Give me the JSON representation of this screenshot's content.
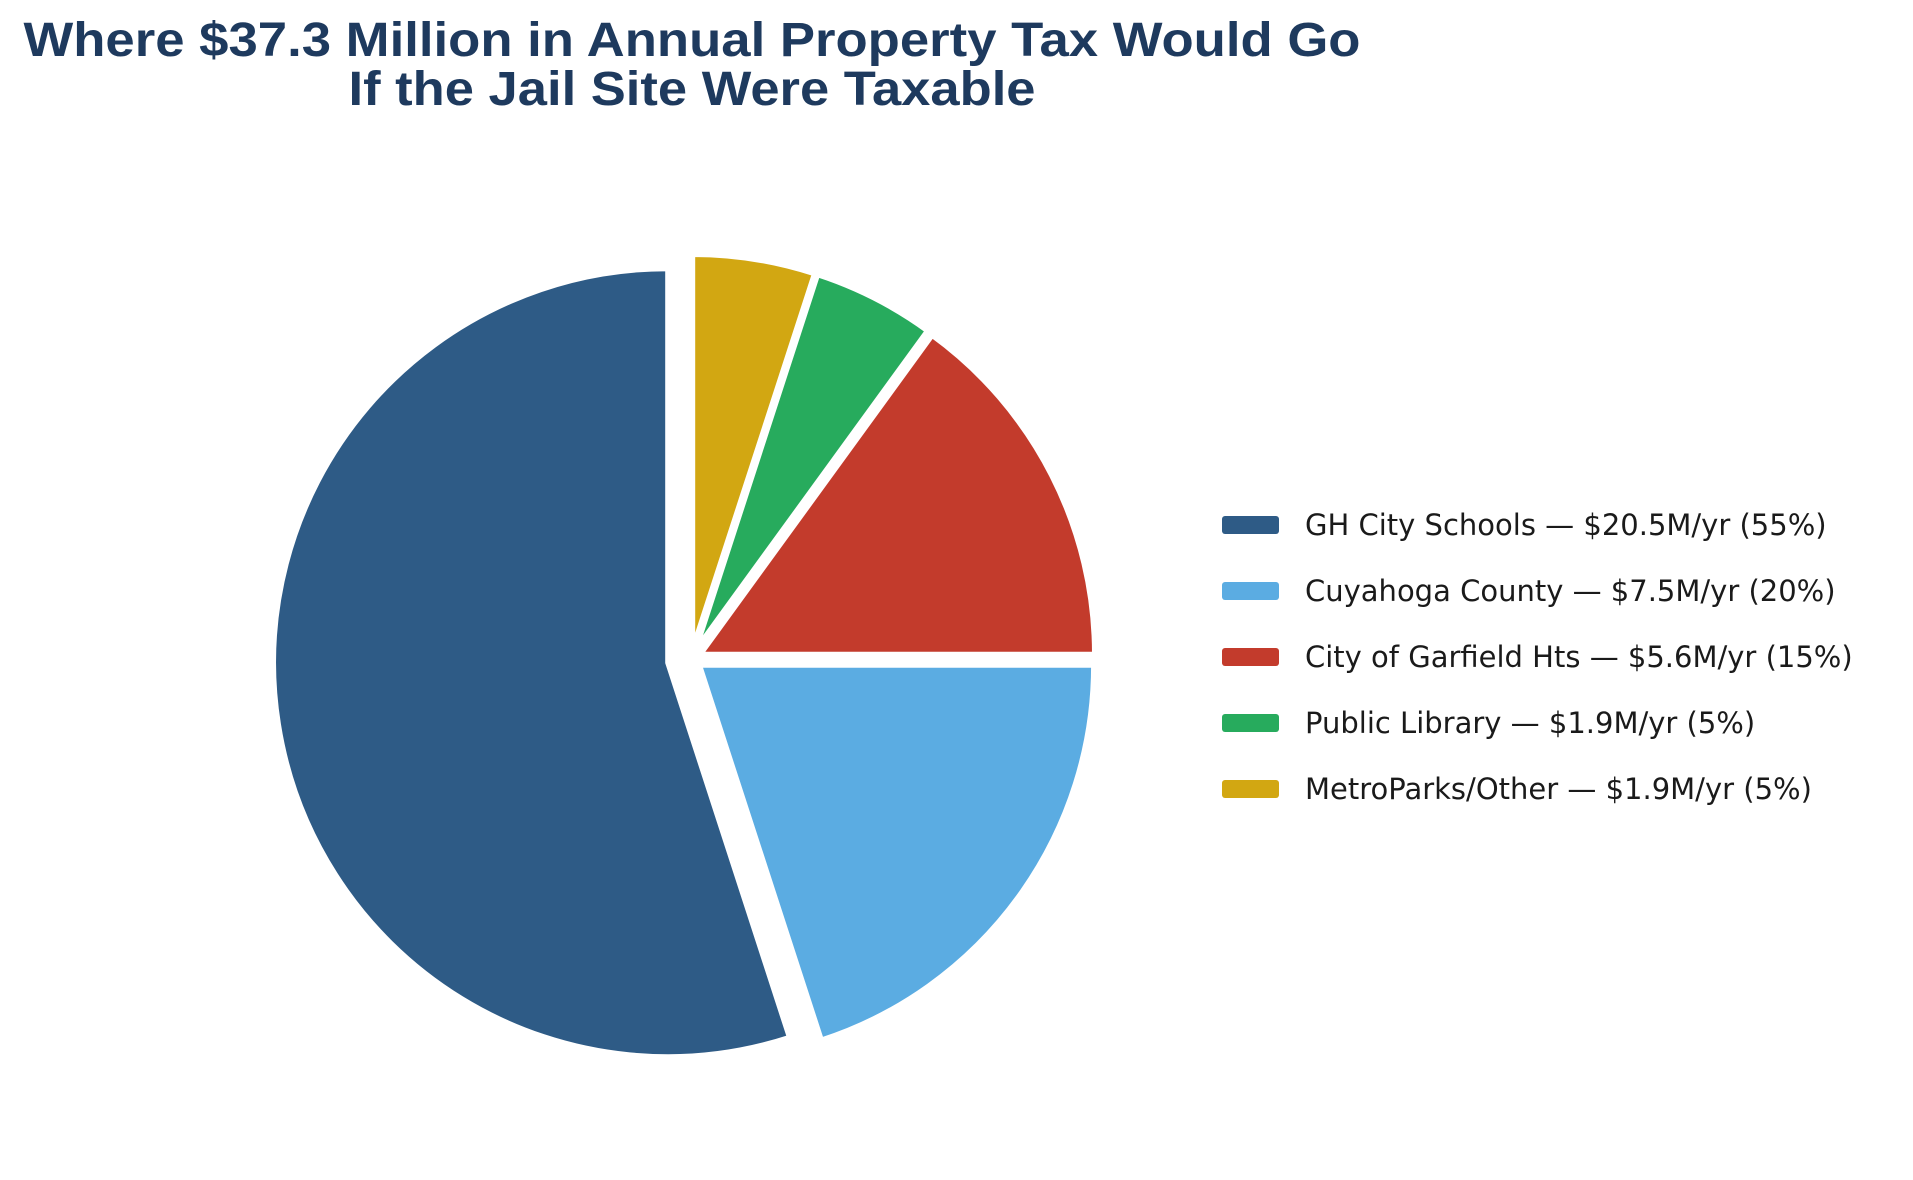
{
  "title": {
    "line1": "Where $37.3 Million in Annual Property Tax Would Go",
    "line2": "If the Jail Site Were Taxable",
    "color": "#1e3a5e"
  },
  "chart_data": {
    "type": "pie",
    "title": "Where $37.3 Million in Annual Property Tax Would Go If the Jail Site Were Taxable",
    "start_angle": 90,
    "direction": "counterclockwise",
    "legend_position": "center-right",
    "grid": false,
    "slices": [
      {
        "id": "gh-city-schools",
        "label": "GH City Schools",
        "amount": "$20.5M/yr",
        "percent": 55,
        "legend_label": "GH City Schools — $20.5M/yr (55%)",
        "color": "#2e5b86",
        "explode": 0.06
      },
      {
        "id": "cuyahoga-county",
        "label": "Cuyahoga County",
        "amount": "$7.5M/yr",
        "percent": 20,
        "legend_label": "Cuyahoga County — $7.5M/yr (20%)",
        "color": "#5bace2",
        "explode": 0.027
      },
      {
        "id": "city-of-garfield-hts",
        "label": "City of Garfield Hts",
        "amount": "$5.6M/yr",
        "percent": 15,
        "legend_label": "City of Garfield Hts — $5.6M/yr (15%)",
        "color": "#c33b2c",
        "explode": 0.027
      },
      {
        "id": "public-library",
        "label": "Public Library",
        "amount": "$1.9M/yr",
        "percent": 5,
        "legend_label": "Public Library — $1.9M/yr (5%)",
        "color": "#27ab5d",
        "explode": 0.027
      },
      {
        "id": "metroparks-other",
        "label": "MetroParks/Other",
        "amount": "$1.9M/yr",
        "percent": 5,
        "legend_label": "MetroParks/Other — $1.9M/yr (5%)",
        "color": "#d2a712",
        "explode": 0.027
      }
    ]
  },
  "legend": {
    "text_color": "#1a1a1a"
  }
}
